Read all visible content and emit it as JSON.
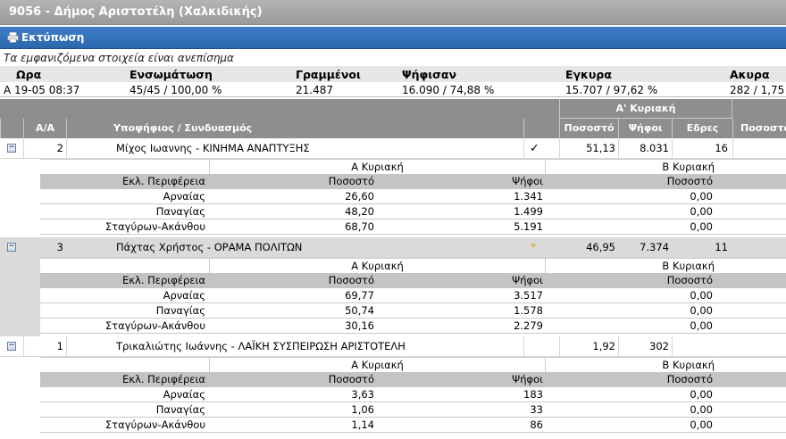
{
  "window": {
    "title": "9056 - Δήμος Αριστοτέλη (Χαλκιδικής)"
  },
  "toolbar": {
    "print_label": "Εκτύπωση",
    "print_icon": "printer-icon"
  },
  "notice": "Τα εμφανιζόμενα στοιχεία είναι ανεπίσημα",
  "summary": {
    "headers": {
      "time": "Ωρα",
      "integration": "Ενσωμάτωση",
      "registered": "Γραμμένοι",
      "voted": "Ψήφισαν",
      "valid": "Εγκυρα",
      "invalid": "Ακυρα"
    },
    "values": {
      "time": "A 19-05 08:37",
      "integration": "45/45 / 100,00 %",
      "registered": "21.487",
      "voted": "16.090 / 74,88 %",
      "valid": "15.707 / 97,62 %",
      "invalid": "282 / 1,75"
    }
  },
  "table": {
    "round_header": "Α' Κυριακή",
    "columns": {
      "aa": "Α/Α",
      "candidate": "Υποψήφιος / Συνδυασμός",
      "pct": "Ποσοστό",
      "votes": "Ψήφοι",
      "seats": "Εδρες",
      "pct2": "Ποσοστό"
    },
    "sub_headers": {
      "round_a": "Α Κυριακή",
      "round_b": "Β Κυριακή",
      "region": "Εκλ. Περιφέρεια",
      "pct": "Ποσοστό",
      "votes": "Ψήφοι",
      "pct_b": "Ποσοστό"
    },
    "candidates": [
      {
        "aa": "2",
        "name": "Μίχος Ιωαννης - ΚΙΝΗΜΑ ΑΝΑΠΤΥΞΗΣ",
        "mark": "✓",
        "pct": "51,13",
        "votes": "8.031",
        "seats": "16",
        "regions": [
          {
            "name": "Αρναίας",
            "pct": "26,60",
            "votes": "1.341",
            "pct_b": "0,00"
          },
          {
            "name": "Παναγίας",
            "pct": "48,20",
            "votes": "1.499",
            "pct_b": "0,00"
          },
          {
            "name": "Σταγύρων-Ακάνθου",
            "pct": "68,70",
            "votes": "5.191",
            "pct_b": "0,00"
          }
        ]
      },
      {
        "aa": "3",
        "name": "Πάχτας Χρήστος - ΟΡΑΜΑ ΠΟΛΙΤΩΝ",
        "mark": "*",
        "pct": "46,95",
        "votes": "7.374",
        "seats": "11",
        "regions": [
          {
            "name": "Αρναίας",
            "pct": "69,77",
            "votes": "3.517",
            "pct_b": "0,00"
          },
          {
            "name": "Παναγίας",
            "pct": "50,74",
            "votes": "1.578",
            "pct_b": "0,00"
          },
          {
            "name": "Σταγύρων-Ακάνθου",
            "pct": "30,16",
            "votes": "2.279",
            "pct_b": "0,00"
          }
        ]
      },
      {
        "aa": "1",
        "name": "Τρικαλιώτης Ιωάννης - ΛΑΪΚΗ ΣΥΣΠΕΙΡΩΣΗ ΑΡΙΣΤΟΤΕΛΗ",
        "mark": "",
        "pct": "1,92",
        "votes": "302",
        "seats": "",
        "regions": [
          {
            "name": "Αρναίας",
            "pct": "3,63",
            "votes": "183",
            "pct_b": "0,00"
          },
          {
            "name": "Παναγίας",
            "pct": "1,06",
            "votes": "33",
            "pct_b": "0,00"
          },
          {
            "name": "Σταγύρων-Ακάνθου",
            "pct": "1,14",
            "votes": "86",
            "pct_b": "0,00"
          }
        ]
      }
    ]
  }
}
